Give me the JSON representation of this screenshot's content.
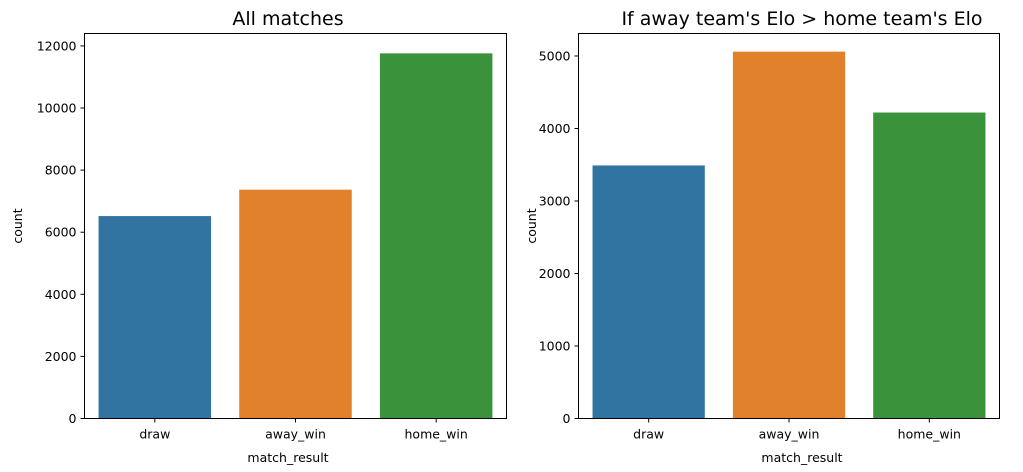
{
  "chart_data": [
    {
      "type": "bar",
      "title": "All matches",
      "xlabel": "match_result",
      "ylabel": "count",
      "categories": [
        "draw",
        "away_win",
        "home_win"
      ],
      "values": [
        6520,
        7370,
        11760
      ],
      "colors": [
        "#3274a1",
        "#e1812c",
        "#3a923a"
      ],
      "ylim": [
        0,
        12400
      ],
      "yticks": [
        0,
        2000,
        4000,
        6000,
        8000,
        10000,
        12000
      ]
    },
    {
      "type": "bar",
      "title": "If away team's Elo > home team's Elo",
      "xlabel": "match_result",
      "ylabel": "count",
      "categories": [
        "draw",
        "away_win",
        "home_win"
      ],
      "values": [
        3490,
        5060,
        4220
      ],
      "colors": [
        "#3274a1",
        "#e1812c",
        "#3a923a"
      ],
      "ylim": [
        0,
        5310
      ],
      "yticks": [
        0,
        1000,
        2000,
        3000,
        4000,
        5000
      ]
    }
  ]
}
